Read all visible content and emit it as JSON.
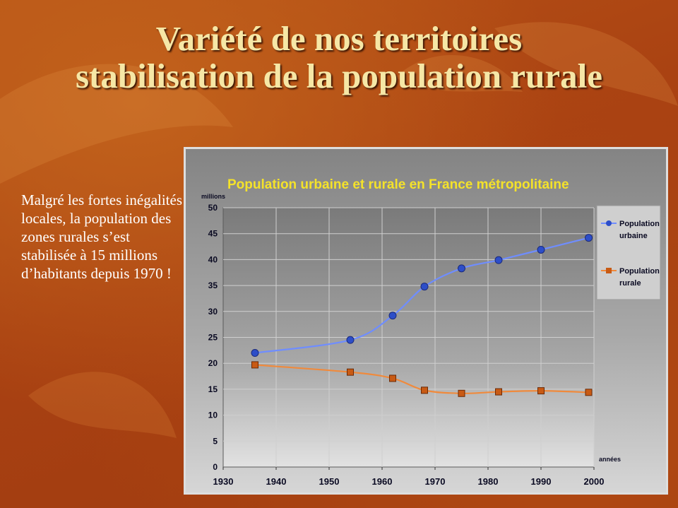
{
  "slide": {
    "title_line1": "Variété de nos territoires",
    "title_line2": "stabilisation de la population rurale",
    "body_text": "Malgré les fortes inégalités locales, la population des zones rurales s’est stabilisée à 15 millions d’habitants depuis 1970 !"
  },
  "colors": {
    "title": "#f6e7a6",
    "urban_series": "#2d4ec8",
    "urban_line": "#6f8dff",
    "rural_series": "#c85a14",
    "rural_line": "#f08a3c",
    "chart_title": "#f4e22a"
  },
  "chart_data": {
    "type": "line",
    "title": "Population urbaine et rurale en France métropolitaine",
    "ylabel": "millions",
    "xlabel": "années",
    "xlim": [
      1930,
      2000
    ],
    "ylim": [
      0,
      50
    ],
    "xticks": [
      1930,
      1940,
      1950,
      1960,
      1970,
      1980,
      1990,
      2000
    ],
    "yticks": [
      0,
      5,
      10,
      15,
      20,
      25,
      30,
      35,
      40,
      45,
      50
    ],
    "grid": true,
    "legend_position": "right",
    "series": [
      {
        "name": "Population urbaine",
        "marker": "circle",
        "x": [
          1936,
          1954,
          1962,
          1968,
          1975,
          1982,
          1990,
          1999
        ],
        "y": [
          22.0,
          24.5,
          29.2,
          34.8,
          38.3,
          39.9,
          41.9,
          44.2
        ]
      },
      {
        "name": "Population rurale",
        "marker": "square",
        "x": [
          1936,
          1954,
          1962,
          1968,
          1975,
          1982,
          1990,
          1999
        ],
        "y": [
          19.7,
          18.3,
          17.1,
          14.8,
          14.2,
          14.5,
          14.7,
          14.4
        ]
      }
    ]
  }
}
